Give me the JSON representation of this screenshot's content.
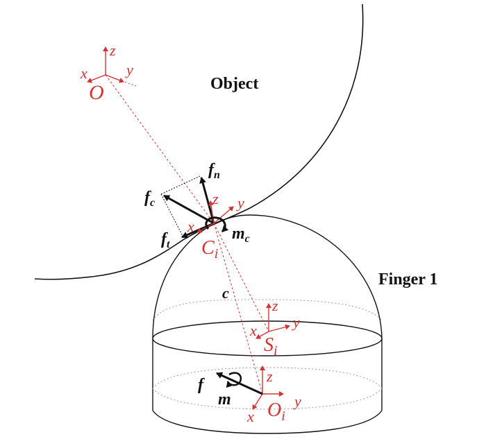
{
  "colors": {
    "red": "#d7322f",
    "black": "#111111",
    "grey": "#9a9a9a"
  },
  "bodies": {
    "object": "Object",
    "finger": "Finger 1"
  },
  "frames": {
    "world": {
      "origin": "O",
      "x": "x",
      "y": "y",
      "z": "z"
    },
    "contact": {
      "origin": "C",
      "sub": "i",
      "x": "x",
      "y": "y",
      "z": "z"
    },
    "s_frame": {
      "origin": "S",
      "sub": "i",
      "x": "x",
      "y": "y",
      "z": "z"
    },
    "finger_base": {
      "origin": "O",
      "sub": "i",
      "x": "x",
      "y": "y",
      "z": "z"
    }
  },
  "forces": {
    "fc": {
      "sym": "f",
      "sub": "c"
    },
    "fn": {
      "sym": "f",
      "sub": "n"
    },
    "ft": {
      "sym": "f",
      "sub": "t"
    },
    "mc": {
      "sym": "m",
      "sub": "c"
    },
    "f": {
      "sym": "f"
    },
    "m": {
      "sym": "m"
    }
  },
  "distance_label": "c"
}
